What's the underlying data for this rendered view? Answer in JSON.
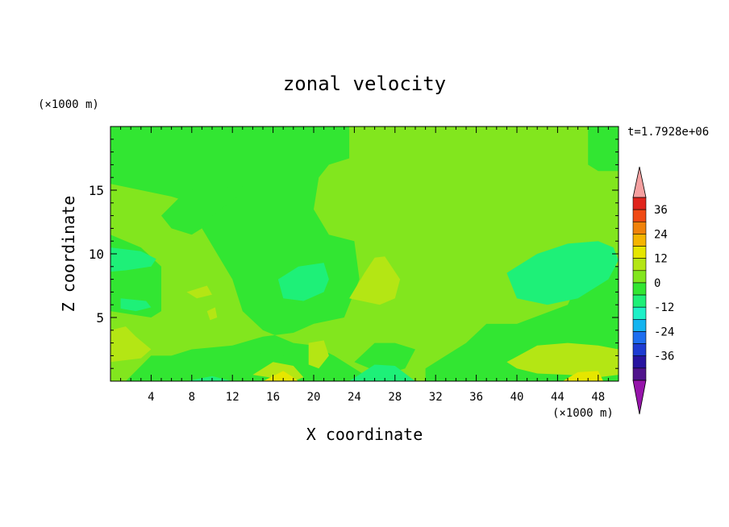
{
  "chart_data": {
    "type": "heatmap",
    "title": "zonal velocity",
    "xlabel": "X coordinate",
    "ylabel": "Z coordinate",
    "x_unit": "(×1000 m)",
    "y_unit": "(×1000 m)",
    "time_label": "t=1.7928e+06",
    "xlim": [
      0,
      50
    ],
    "ylim": [
      0,
      20
    ],
    "x_ticks": [
      4,
      8,
      12,
      16,
      20,
      24,
      28,
      32,
      36,
      40,
      44,
      48
    ],
    "y_ticks": [
      5,
      10,
      15
    ],
    "colorbar": {
      "ticks": [
        36,
        24,
        12,
        0,
        -12,
        -24,
        -36
      ],
      "levels": [
        {
          "min": 36,
          "max": 42,
          "color": "#e0241c"
        },
        {
          "min": 30,
          "max": 36,
          "color": "#f04a14"
        },
        {
          "min": 24,
          "max": 30,
          "color": "#f0820a"
        },
        {
          "min": 18,
          "max": 24,
          "color": "#f5b400"
        },
        {
          "min": 12,
          "max": 18,
          "color": "#e6e600"
        },
        {
          "min": 6,
          "max": 12,
          "color": "#b4e614"
        },
        {
          "min": 0,
          "max": 6,
          "color": "#82e61e"
        },
        {
          "min": -6,
          "max": 0,
          "color": "#32e632"
        },
        {
          "min": -12,
          "max": -6,
          "color": "#1ef078"
        },
        {
          "min": -18,
          "max": -12,
          "color": "#1ef0c8"
        },
        {
          "min": -24,
          "max": -18,
          "color": "#14b4f0"
        },
        {
          "min": -30,
          "max": -24,
          "color": "#1e6ef0"
        },
        {
          "min": -36,
          "max": -30,
          "color": "#1e3cd2"
        },
        {
          "min": -42,
          "max": -36,
          "color": "#2814a0"
        },
        {
          "min": -48,
          "max": -42,
          "color": "#50148c"
        }
      ],
      "over_color": "#f5a0a0",
      "under_color": "#9614aa"
    },
    "background_value": -4,
    "regions": [
      {
        "value": -4,
        "points": [
          [
            0,
            0
          ],
          [
            50,
            0
          ],
          [
            50,
            20
          ],
          [
            0,
            20
          ]
        ]
      },
      {
        "value": 3,
        "points": [
          [
            23.5,
            20
          ],
          [
            47,
            20
          ],
          [
            47,
            17
          ],
          [
            48,
            16.5
          ],
          [
            50,
            16.5
          ],
          [
            50,
            9
          ],
          [
            47,
            9.5
          ],
          [
            45,
            6
          ],
          [
            40,
            4.5
          ],
          [
            37,
            4.5
          ],
          [
            35,
            3
          ],
          [
            33,
            2
          ],
          [
            31,
            1
          ],
          [
            31,
            0
          ],
          [
            26,
            0
          ],
          [
            24,
            1
          ],
          [
            22,
            2
          ],
          [
            20,
            2.8
          ],
          [
            18,
            3
          ],
          [
            15,
            4
          ],
          [
            13,
            5.5
          ],
          [
            12,
            8
          ],
          [
            10.5,
            10
          ],
          [
            9,
            12
          ],
          [
            8,
            14
          ],
          [
            6,
            14.5
          ],
          [
            3,
            15
          ],
          [
            0,
            15.5
          ],
          [
            0,
            11.5
          ],
          [
            3,
            10.5
          ],
          [
            5,
            9
          ],
          [
            5,
            5.5
          ],
          [
            4,
            5
          ],
          [
            0,
            5.5
          ],
          [
            0,
            0
          ],
          [
            1.5,
            0
          ],
          [
            4,
            2
          ],
          [
            6,
            2
          ],
          [
            8,
            2.5
          ],
          [
            12,
            2.8
          ],
          [
            15,
            3.5
          ],
          [
            18,
            3.8
          ],
          [
            20,
            4.5
          ],
          [
            23,
            5
          ],
          [
            24.5,
            8
          ],
          [
            24,
            11
          ],
          [
            21.5,
            11.5
          ],
          [
            20,
            13.5
          ],
          [
            20.5,
            16
          ],
          [
            21.5,
            17
          ],
          [
            23.5,
            17.5
          ]
        ]
      },
      {
        "value": -4,
        "points": [
          [
            7.5,
            15
          ],
          [
            13,
            15.3
          ],
          [
            12.5,
            14.5
          ],
          [
            10,
            13
          ],
          [
            9,
            12
          ],
          [
            8,
            11.5
          ],
          [
            6,
            12
          ],
          [
            5,
            13
          ]
        ]
      },
      {
        "value": -4,
        "points": [
          [
            11,
            11
          ],
          [
            12.5,
            12
          ],
          [
            13,
            11
          ],
          [
            11.5,
            10
          ]
        ]
      },
      {
        "value": -4,
        "points": [
          [
            13,
            1
          ],
          [
            14,
            2
          ],
          [
            16,
            2.5
          ],
          [
            17,
            2
          ],
          [
            18,
            1.5
          ],
          [
            15,
            0.5
          ]
        ]
      },
      {
        "value": -4,
        "points": [
          [
            24,
            1.5
          ],
          [
            26,
            3
          ],
          [
            28,
            3
          ],
          [
            30,
            2.5
          ],
          [
            29,
            1
          ],
          [
            27,
            0.5
          ]
        ]
      },
      {
        "value": -12,
        "points": [
          [
            0,
            10.5
          ],
          [
            3,
            10.2
          ],
          [
            4.5,
            9.6
          ],
          [
            4,
            9
          ],
          [
            1.5,
            8.7
          ],
          [
            0,
            8.6
          ]
        ]
      },
      {
        "value": -12,
        "points": [
          [
            1,
            6.5
          ],
          [
            3.5,
            6.3
          ],
          [
            4,
            5.8
          ],
          [
            2.5,
            5.5
          ],
          [
            1,
            5.7
          ]
        ]
      },
      {
        "value": -12,
        "points": [
          [
            16.5,
            8
          ],
          [
            18.5,
            9
          ],
          [
            21,
            9.3
          ],
          [
            21.5,
            8
          ],
          [
            21,
            7
          ],
          [
            19,
            6.3
          ],
          [
            17,
            6.5
          ]
        ]
      },
      {
        "value": -12,
        "points": [
          [
            39,
            8.5
          ],
          [
            42,
            10
          ],
          [
            45,
            10.8
          ],
          [
            48,
            11
          ],
          [
            49.5,
            10.5
          ],
          [
            50,
            9.5
          ],
          [
            49,
            8
          ],
          [
            46,
            6.5
          ],
          [
            43,
            6
          ],
          [
            40,
            6.5
          ]
        ]
      },
      {
        "value": -12,
        "points": [
          [
            23.5,
            0
          ],
          [
            26,
            1.3
          ],
          [
            28,
            1.2
          ],
          [
            30,
            0
          ]
        ]
      },
      {
        "value": -12,
        "points": [
          [
            7.5,
            0
          ],
          [
            10,
            0.4
          ],
          [
            12,
            0
          ]
        ]
      },
      {
        "value": 6,
        "points": [
          [
            23.5,
            6.5
          ],
          [
            25,
            8.5
          ],
          [
            26,
            9.7
          ],
          [
            27,
            9.8
          ],
          [
            28.5,
            8
          ],
          [
            28,
            6.5
          ],
          [
            26.5,
            6
          ]
        ]
      },
      {
        "value": 6,
        "points": [
          [
            7.5,
            7
          ],
          [
            9.5,
            7.5
          ],
          [
            10,
            6.8
          ],
          [
            8.5,
            6.5
          ]
        ]
      },
      {
        "value": 6,
        "points": [
          [
            9.5,
            5.5
          ],
          [
            10.3,
            5.8
          ],
          [
            10.5,
            5
          ],
          [
            9.8,
            4.8
          ]
        ]
      },
      {
        "value": 6,
        "points": [
          [
            0,
            4
          ],
          [
            1.5,
            4.3
          ],
          [
            2.5,
            3.5
          ],
          [
            4,
            2.5
          ],
          [
            3,
            1.8
          ],
          [
            0,
            1.5
          ]
        ]
      },
      {
        "value": 6,
        "points": [
          [
            19.5,
            3
          ],
          [
            21,
            3.2
          ],
          [
            21.5,
            2
          ],
          [
            20.5,
            1
          ],
          [
            19.5,
            1.3
          ]
        ]
      },
      {
        "value": 6,
        "points": [
          [
            14,
            0.5
          ],
          [
            16,
            1.5
          ],
          [
            18,
            1.2
          ],
          [
            19,
            0.3
          ],
          [
            18,
            0
          ]
        ]
      },
      {
        "value": 6,
        "points": [
          [
            39,
            1.5
          ],
          [
            42,
            2.8
          ],
          [
            45,
            3
          ],
          [
            48,
            2.8
          ],
          [
            50,
            2.5
          ],
          [
            50,
            0.5
          ],
          [
            48,
            0.3
          ],
          [
            45,
            0.5
          ],
          [
            42,
            0.6
          ],
          [
            40,
            1
          ]
        ]
      },
      {
        "value": 12,
        "points": [
          [
            15,
            0
          ],
          [
            17,
            0.8
          ],
          [
            18,
            0.3
          ],
          [
            18.5,
            0
          ]
        ]
      },
      {
        "value": 12,
        "points": [
          [
            44.5,
            0
          ],
          [
            46,
            0.7
          ],
          [
            48,
            0.8
          ],
          [
            48.5,
            0
          ]
        ]
      }
    ]
  }
}
